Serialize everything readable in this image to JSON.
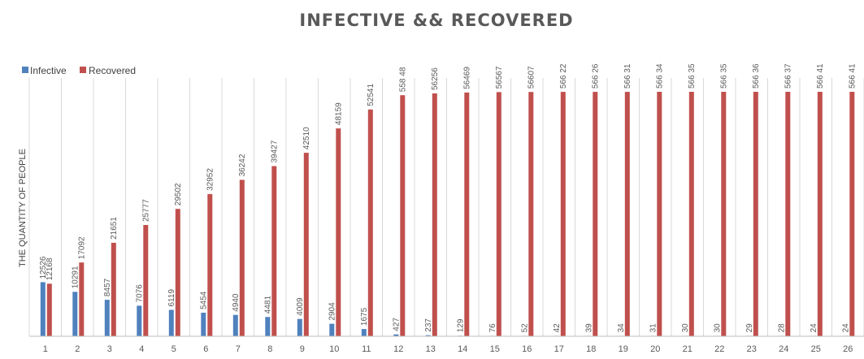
{
  "chart_data": {
    "type": "bar",
    "title": "INFECTIVE && RECOVERED",
    "xlabel": "",
    "ylabel": "THE QUANTITY OF PEOPLE",
    "legend_position": "top-left",
    "grid": "vertical",
    "ylim": [
      0,
      60000
    ],
    "categories": [
      "1",
      "2",
      "3",
      "4",
      "5",
      "6",
      "7",
      "8",
      "9",
      "10",
      "11",
      "12",
      "13",
      "14",
      "15",
      "16",
      "17",
      "18",
      "19",
      "20",
      "21",
      "22",
      "23",
      "24",
      "25",
      "26"
    ],
    "series": [
      {
        "name": "Infective",
        "color": "#4f81bd",
        "values": [
          12526,
          10291,
          8457,
          7076,
          6119,
          5454,
          4940,
          4481,
          4009,
          2904,
          1675,
          427,
          237,
          129,
          76,
          52,
          42,
          39,
          34,
          31,
          30,
          30,
          29,
          28,
          24,
          24
        ]
      },
      {
        "name": "Recovered",
        "color": "#c0504d",
        "values": [
          12168,
          17092,
          21651,
          25777,
          29502,
          32952,
          36242,
          39427,
          42510,
          48159,
          52541,
          55848,
          56256,
          56469,
          56567,
          56607,
          56622,
          56626,
          56631,
          56634,
          56635,
          56635,
          56636,
          56637,
          56641,
          56641
        ]
      }
    ],
    "labels": {
      "series_0": [
        "12526",
        "10291",
        "8457",
        "7076",
        "6119",
        "5454",
        "4940",
        "4481",
        "4009",
        "2904",
        "1675",
        "427",
        "237",
        "129",
        "76",
        "52",
        "42",
        "39",
        "34",
        "31",
        "30",
        "30",
        "29",
        "28",
        "24",
        "24"
      ],
      "series_1": [
        "12168",
        "17092",
        "21651",
        "25777",
        "29502",
        "32952",
        "36242",
        "39427",
        "42510",
        "48159",
        "52541",
        "558 48",
        "56256",
        "56469",
        "56567",
        "56607",
        "566 22",
        "566 26",
        "566 31",
        "566 34",
        "566 35",
        "566 35",
        "566 36",
        "566 37",
        "566 41",
        "566 41"
      ]
    }
  }
}
